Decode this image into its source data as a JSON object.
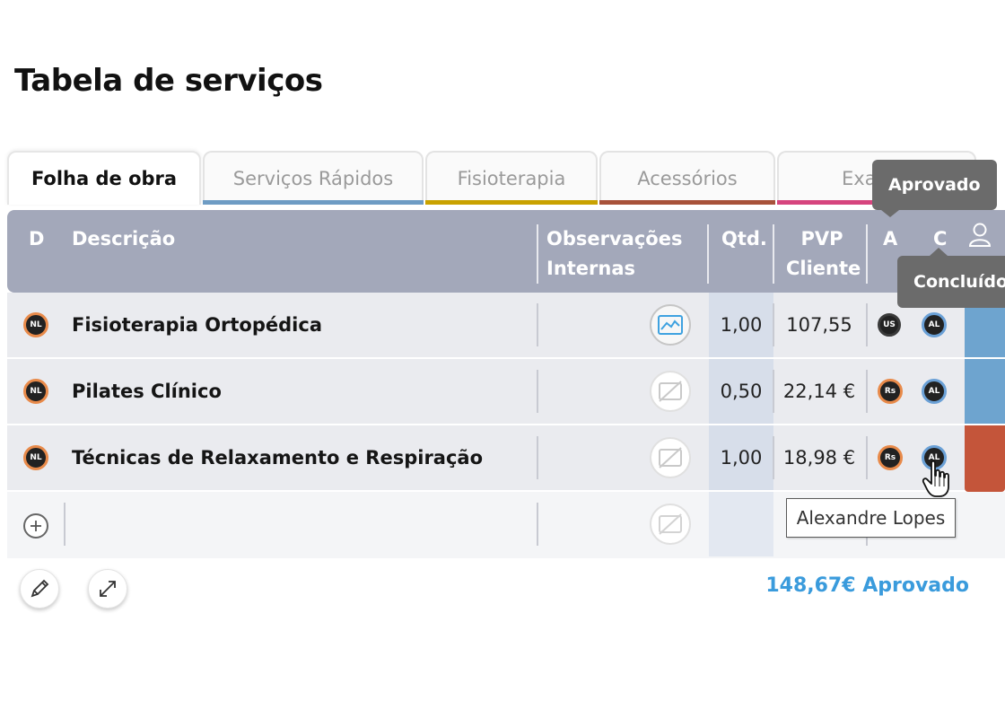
{
  "page": {
    "title": "Tabela de serviços"
  },
  "tabs": [
    {
      "label": "Folha de obra",
      "active": true,
      "color": ""
    },
    {
      "label": "Serviços Rápidos",
      "active": false,
      "color": "#6e9cc4"
    },
    {
      "label": "Fisioterapia",
      "active": false,
      "color": "#c9a200"
    },
    {
      "label": "Acessórios",
      "active": false,
      "color": "#a8523a"
    },
    {
      "label": "Exa",
      "active": false,
      "color": "#d6457e"
    }
  ],
  "table": {
    "headers": {
      "d": "D",
      "descricao": "Descrição",
      "obs_line1": "Observações",
      "obs_line2": "Internas",
      "qtd": "Qtd.",
      "pvp_line1": "PVP",
      "pvp_line2": "Cliente",
      "a": "A",
      "c": "C"
    },
    "rows": [
      {
        "d_initials": "NL",
        "descricao": "Fisioterapia Ortopédica",
        "obs_icon": "chart-image-icon",
        "qtd": "1,00",
        "pvp": "107,55",
        "a_initials": "US",
        "c_initials": "AL",
        "status_color": "#6ea4cf"
      },
      {
        "d_initials": "NL",
        "descricao": "Pilates Clínico",
        "obs_icon": "no-image-icon",
        "qtd": "0,50",
        "pvp": "22,14 €",
        "a_initials": "Rs",
        "c_initials": "AL",
        "status_color": "#6ea4cf"
      },
      {
        "d_initials": "NL",
        "descricao": "Técnicas de Relaxamento e Respiração",
        "obs_icon": "no-image-icon",
        "qtd": "1,00",
        "pvp": "18,98 €",
        "a_initials": "Rs",
        "c_initials": "AL",
        "status_color": "#c4553a"
      }
    ]
  },
  "footer": {
    "total": "148,67€ Aprovado"
  },
  "tooltips": {
    "aprovado": "Aprovado",
    "concluido": "Concluído",
    "hover_name": "Alexandre Lopes"
  }
}
